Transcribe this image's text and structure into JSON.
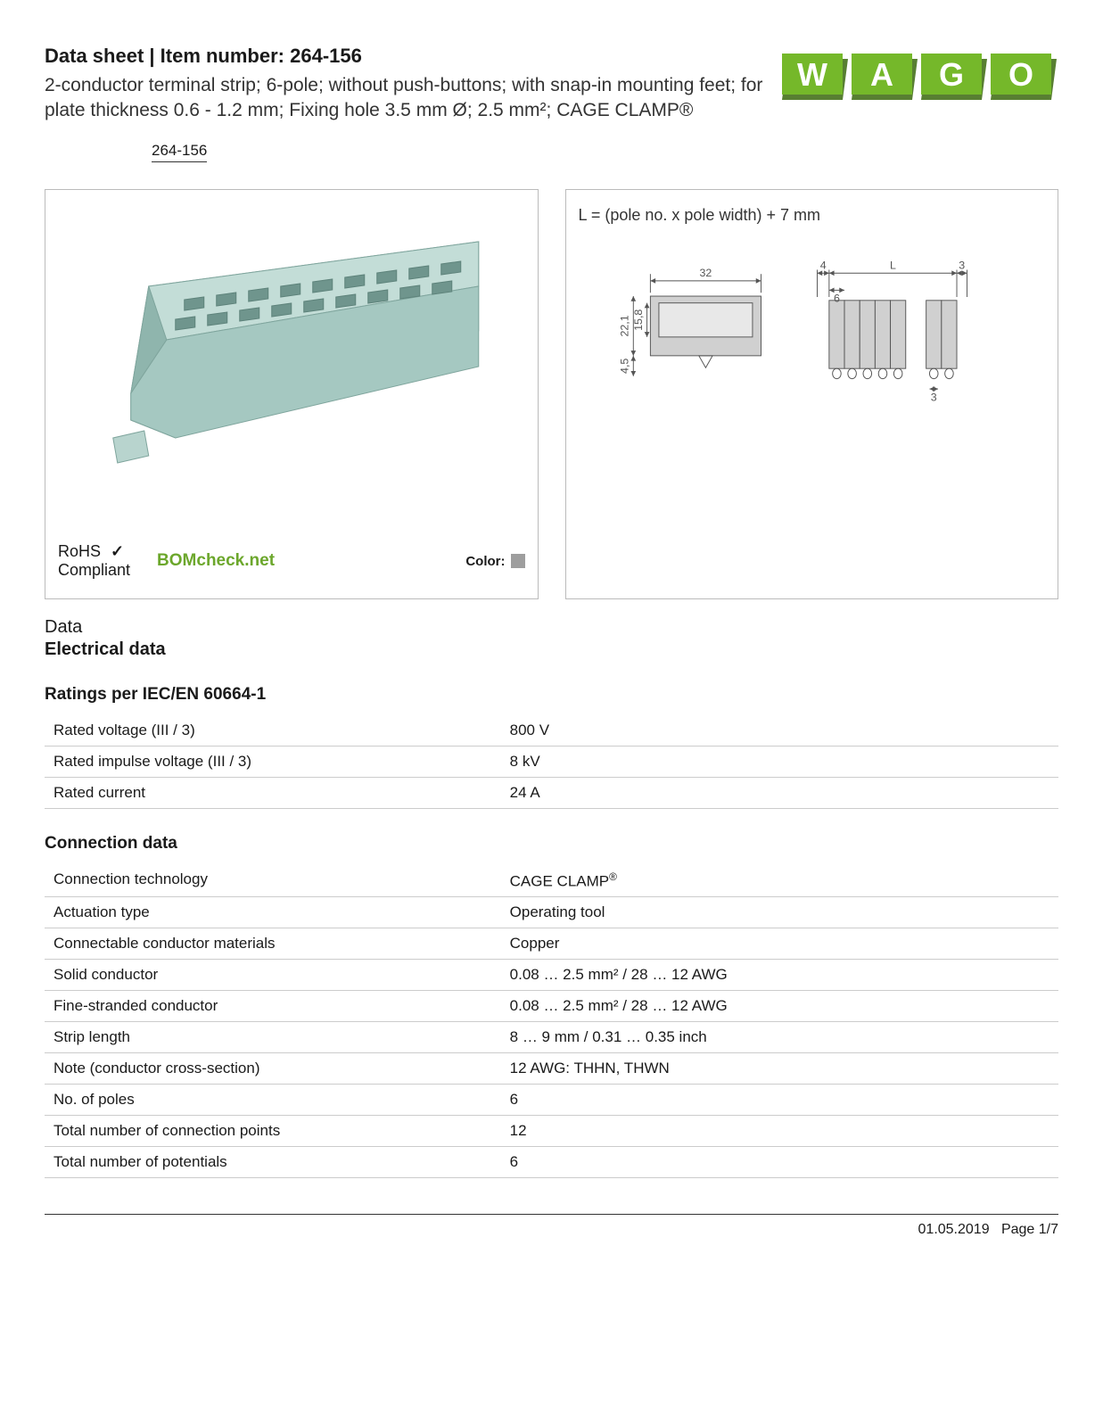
{
  "header": {
    "title_prefix": "Data sheet  |  Item number: ",
    "item_number": "264-156",
    "subtitle": "2-conductor terminal strip; 6-pole; without push-buttons; with snap-in mounting feet; for plate thickness 0.6 - 1.2 mm; Fixing hole 3.5 mm Ø; 2.5 mm²; CAGE CLAMP®",
    "item_link_text": "264-156"
  },
  "logo": {
    "fill": "#75b82a",
    "shadow": "#587f32",
    "letters": "WAGO"
  },
  "product_figure": {
    "rohs_line1": "RoHS",
    "rohs_check": "✓",
    "rohs_line2": "Compliant",
    "bomcheck_text": "BOMcheck",
    "bomcheck_suffix": ".net",
    "color_label": "Color:",
    "color_swatch": "#9e9e9e",
    "render_tint": "#a5c8c1"
  },
  "dimension_figure": {
    "formula": "L = (pole no. x pole width) + 7 mm",
    "dims": {
      "front_width": "32",
      "height_outer": "22,1",
      "height_inner": "15,8",
      "foot_h": "4,5",
      "side_left_margin": "4",
      "side_L": "L",
      "side_pitch": "6",
      "side_right_margin": "3",
      "lug": "3"
    },
    "stroke": "#555555",
    "fill_grey": "#d0d0d0",
    "fill_light": "#e8e8e8"
  },
  "data_section": {
    "label": "Data",
    "electrical_heading": "Electrical data",
    "ratings_heading": "Ratings per IEC/EN 60664-1",
    "ratings_rows": [
      {
        "k": "Rated voltage (III / 3)",
        "v": "800 V"
      },
      {
        "k": "Rated impulse voltage (III / 3)",
        "v": "8 kV"
      },
      {
        "k": "Rated current",
        "v": "24 A"
      }
    ],
    "connection_heading": "Connection data",
    "connection_rows": [
      {
        "k": "Connection technology",
        "v": "CAGE CLAMP®"
      },
      {
        "k": "Actuation type",
        "v": "Operating tool"
      },
      {
        "k": "Connectable conductor materials",
        "v": "Copper"
      },
      {
        "k": "Solid conductor",
        "v": "0.08 … 2.5 mm² / 28 … 12 AWG"
      },
      {
        "k": "Fine-stranded conductor",
        "v": "0.08 … 2.5 mm² / 28 … 12 AWG"
      },
      {
        "k": "Strip length",
        "v": "8 … 9 mm / 0.31 … 0.35 inch"
      },
      {
        "k": "Note (conductor cross-section)",
        "v": "12 AWG: THHN, THWN"
      },
      {
        "k": "No. of poles",
        "v": "6"
      },
      {
        "k": "Total number of connection points",
        "v": "12"
      },
      {
        "k": "Total number of potentials",
        "v": "6"
      }
    ]
  },
  "footer": {
    "date": "01.05.2019",
    "page": "Page 1/7"
  }
}
